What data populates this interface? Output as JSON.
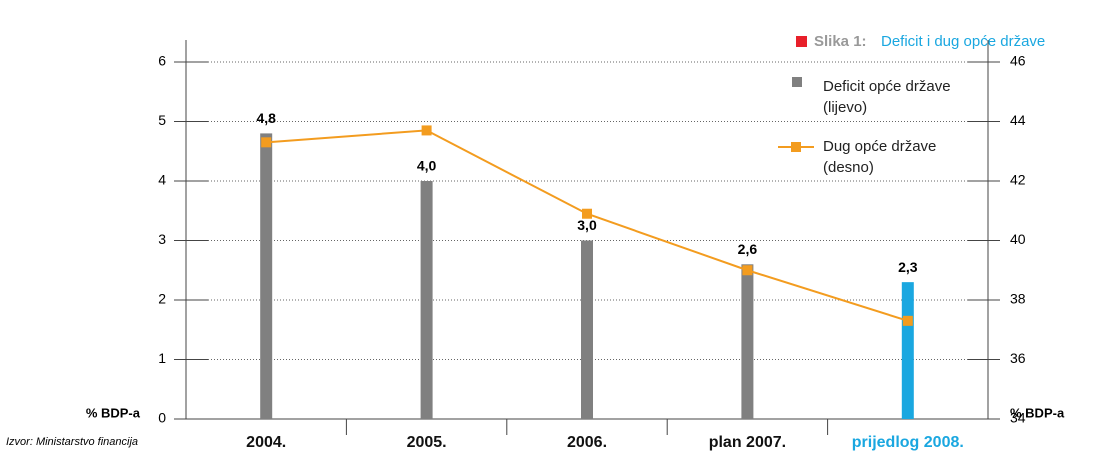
{
  "chart_data": {
    "type": "bar_line",
    "title_label": "Slika 1:",
    "title": "Deficit i dug opće države",
    "y_label": "% BDP-a",
    "y2_label": "% BDP-a",
    "source": "Izvor: Ministarstvo financija",
    "categories": [
      "2004.",
      "2005.",
      "2006.",
      "plan 2007.",
      "prijedlog 2008."
    ],
    "series": [
      {
        "name": "Deficit opće države (lijevo)",
        "type": "bar",
        "color": "#808080",
        "colors": [
          "#808080",
          "#808080",
          "#808080",
          "#808080",
          "#1aa7e0"
        ],
        "values": [
          4.8,
          4.0,
          3.0,
          2.6,
          2.3
        ],
        "value_labels": [
          "4,8",
          "4,0",
          "3,0",
          "2,6",
          "2,3"
        ]
      },
      {
        "name": "Dug opće države (desno)",
        "type": "line",
        "axis": "y2",
        "color": "#f39c1f",
        "values": [
          43.3,
          43.7,
          40.9,
          39.0,
          37.3
        ]
      }
    ],
    "ylim": [
      0,
      6
    ],
    "yticks": [
      0,
      1,
      2,
      3,
      4,
      5,
      6
    ],
    "y2lim": [
      34,
      46
    ],
    "y2ticks": [
      34,
      36,
      38,
      40,
      42,
      44,
      46
    ],
    "grid": true
  }
}
